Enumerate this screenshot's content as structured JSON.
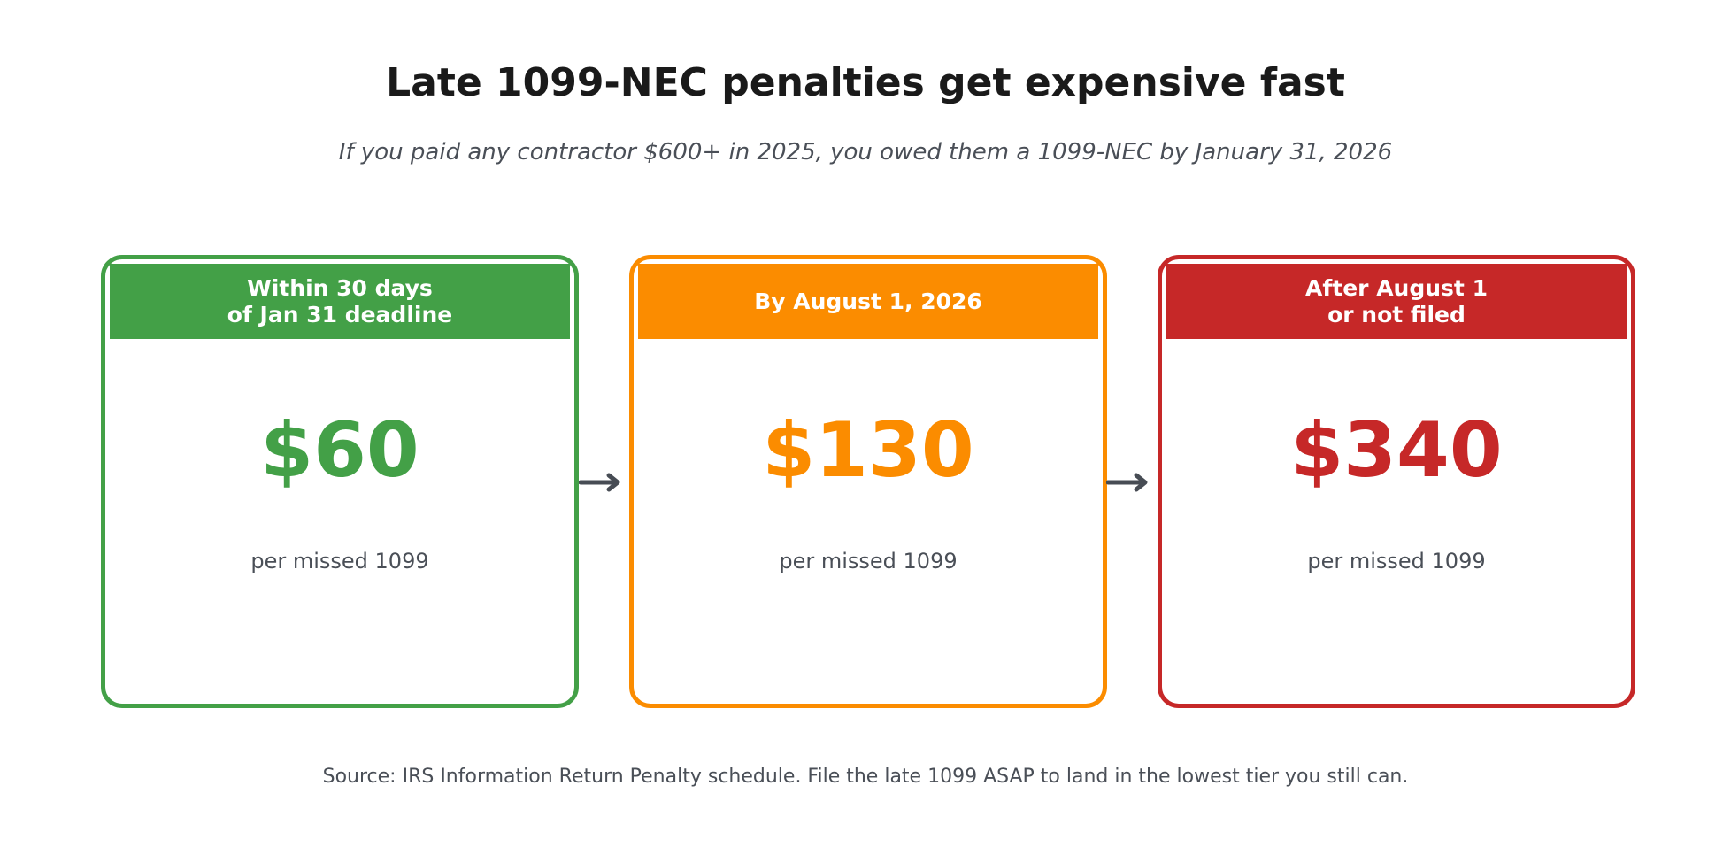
{
  "title": "Late 1099-NEC penalties get expensive fast",
  "subtitle": "If you paid any contractor $600+ in 2025, you owed them a 1099-NEC by January 31, 2026",
  "tiers": [
    {
      "header": "Within 30 days\nof Jan 31 deadline",
      "amount": "$60",
      "caption": "per missed 1099",
      "color": "#43a047"
    },
    {
      "header": "By August 1, 2026",
      "amount": "$130",
      "caption": "per missed 1099",
      "color": "#fb8c00"
    },
    {
      "header": "After August 1\nor not filed",
      "amount": "$340",
      "caption": "per missed 1099",
      "color": "#c62828"
    }
  ],
  "arrow_color": "#474c54",
  "source": "Source: IRS Information Return Penalty schedule. File the late 1099 ASAP to land in the lowest tier you still can."
}
